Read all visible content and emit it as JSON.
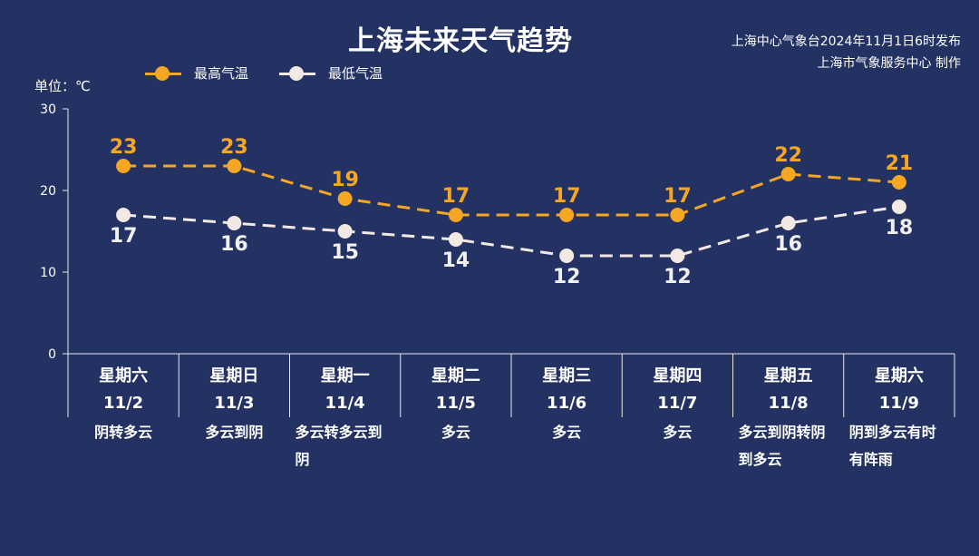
{
  "header": {
    "title": "上海未来天气趋势",
    "source_line1": "上海中心气象台2024年11月1日6时发布",
    "source_line2": "上海市气象服务中心 制作",
    "unit_label": "单位：℃"
  },
  "colors": {
    "background": "#233263",
    "high": "#F5A623",
    "low": "#F3E9E4",
    "axis": "#E8E8E8"
  },
  "chart_data": {
    "type": "line",
    "ylim": [
      0,
      30
    ],
    "yticks": [
      0,
      10,
      20,
      30
    ],
    "legend_position": "top-left",
    "categories": [
      "11/2",
      "11/3",
      "11/4",
      "11/5",
      "11/6",
      "11/7",
      "11/8",
      "11/9"
    ],
    "weekdays": [
      "星期六",
      "星期日",
      "星期一",
      "星期二",
      "星期三",
      "星期四",
      "星期五",
      "星期六"
    ],
    "conditions": [
      [
        "阴转多云"
      ],
      [
        "多云到阴"
      ],
      [
        "多云转多云到",
        "阴"
      ],
      [
        "多云"
      ],
      [
        "多云"
      ],
      [
        "多云"
      ],
      [
        "多云到阴转阴",
        "到多云"
      ],
      [
        "阴到多云有时",
        "有阵雨"
      ]
    ],
    "series": [
      {
        "name": "最高气温",
        "values": [
          23,
          23,
          19,
          17,
          17,
          17,
          22,
          21
        ]
      },
      {
        "name": "最低气温",
        "values": [
          17,
          16,
          15,
          14,
          12,
          12,
          16,
          18
        ]
      }
    ]
  }
}
